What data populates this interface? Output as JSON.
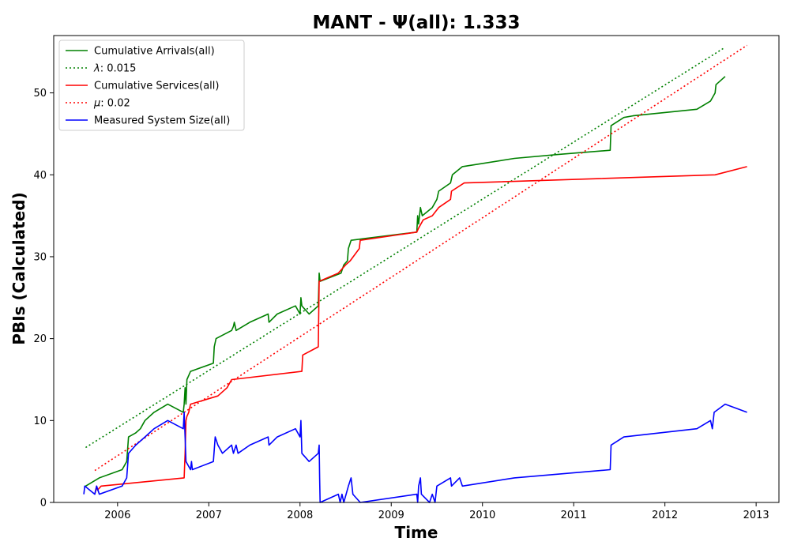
{
  "chart_data": {
    "type": "line",
    "title": "MANT -  Ψ(all): 1.333",
    "xlabel": "Time",
    "ylabel": "PBIs (Calculated)",
    "xlim": [
      2005.3,
      2013.25
    ],
    "ylim": [
      0,
      57
    ],
    "xticks": [
      2006,
      2007,
      2008,
      2009,
      2010,
      2011,
      2012,
      2013
    ],
    "yticks": [
      0,
      10,
      20,
      30,
      40,
      50
    ],
    "grid": false,
    "legend": "top-left",
    "series": [
      {
        "name": "Cumulative Arrivals(all)",
        "color": "#008000",
        "style": "solid",
        "points": [
          [
            2005.65,
            2
          ],
          [
            2005.8,
            3
          ],
          [
            2006.05,
            4
          ],
          [
            2006.1,
            5
          ],
          [
            2006.12,
            8
          ],
          [
            2006.2,
            8.5
          ],
          [
            2006.25,
            9
          ],
          [
            2006.3,
            10
          ],
          [
            2006.4,
            11
          ],
          [
            2006.55,
            12
          ],
          [
            2006.72,
            11
          ],
          [
            2006.73,
            12
          ],
          [
            2006.74,
            14
          ],
          [
            2006.75,
            12
          ],
          [
            2006.76,
            15
          ],
          [
            2006.8,
            16
          ],
          [
            2007.05,
            17
          ],
          [
            2007.06,
            19
          ],
          [
            2007.08,
            20
          ],
          [
            2007.25,
            21
          ],
          [
            2007.27,
            21.5
          ],
          [
            2007.28,
            22
          ],
          [
            2007.3,
            21
          ],
          [
            2007.45,
            22
          ],
          [
            2007.65,
            23
          ],
          [
            2007.66,
            22
          ],
          [
            2007.75,
            23
          ],
          [
            2007.95,
            24
          ],
          [
            2008.0,
            23
          ],
          [
            2008.01,
            25
          ],
          [
            2008.02,
            24
          ],
          [
            2008.1,
            23
          ],
          [
            2008.2,
            24
          ],
          [
            2008.21,
            28
          ],
          [
            2008.22,
            27
          ],
          [
            2008.45,
            28
          ],
          [
            2008.48,
            29
          ],
          [
            2008.52,
            29.5
          ],
          [
            2008.53,
            31
          ],
          [
            2008.56,
            32
          ],
          [
            2008.7,
            32.2
          ],
          [
            2009.28,
            33
          ],
          [
            2009.29,
            35
          ],
          [
            2009.3,
            34
          ],
          [
            2009.32,
            36
          ],
          [
            2009.34,
            35
          ],
          [
            2009.45,
            36
          ],
          [
            2009.5,
            37
          ],
          [
            2009.52,
            38
          ],
          [
            2009.65,
            39
          ],
          [
            2009.67,
            40
          ],
          [
            2009.78,
            41
          ],
          [
            2010.35,
            42
          ],
          [
            2010.85,
            42.5
          ],
          [
            2011.4,
            43
          ],
          [
            2011.41,
            46
          ],
          [
            2011.55,
            47
          ],
          [
            2011.65,
            47.2
          ],
          [
            2012.35,
            48
          ],
          [
            2012.5,
            49
          ],
          [
            2012.55,
            50
          ],
          [
            2012.56,
            51
          ],
          [
            2012.66,
            52
          ]
        ]
      },
      {
        "name": "$\\lambda$: 0.015",
        "legend_symbol": "λ",
        "legend_value": ": 0.015",
        "color": "#008000",
        "style": "dotted",
        "points": [
          [
            2005.65,
            6.7
          ],
          [
            2012.65,
            55.5
          ]
        ]
      },
      {
        "name": "Cumulative Services(all)",
        "color": "#ff0000",
        "style": "solid",
        "points": [
          [
            2005.75,
            1
          ],
          [
            2005.77,
            2
          ],
          [
            2005.78,
            1.5
          ],
          [
            2005.82,
            2
          ],
          [
            2006.73,
            3
          ],
          [
            2006.74,
            6
          ],
          [
            2006.75,
            10
          ],
          [
            2006.76,
            10.5
          ],
          [
            2006.78,
            11
          ],
          [
            2006.8,
            12
          ],
          [
            2007.1,
            13
          ],
          [
            2007.2,
            14
          ],
          [
            2007.25,
            15
          ],
          [
            2008.02,
            16
          ],
          [
            2008.03,
            18
          ],
          [
            2008.2,
            19
          ],
          [
            2008.21,
            27
          ],
          [
            2008.42,
            28
          ],
          [
            2008.5,
            29
          ],
          [
            2008.55,
            29.5
          ],
          [
            2008.65,
            31
          ],
          [
            2008.66,
            32
          ],
          [
            2009.28,
            33
          ],
          [
            2009.3,
            33.5
          ],
          [
            2009.35,
            34.5
          ],
          [
            2009.45,
            35
          ],
          [
            2009.52,
            36
          ],
          [
            2009.65,
            37
          ],
          [
            2009.66,
            38
          ],
          [
            2009.8,
            39
          ],
          [
            2012.55,
            40
          ],
          [
            2012.9,
            41
          ]
        ]
      },
      {
        "name": "$\\mu$: 0.02",
        "legend_symbol": "μ",
        "legend_value": ": 0.02",
        "color": "#ff0000",
        "style": "dotted",
        "points": [
          [
            2005.75,
            3.9
          ],
          [
            2012.9,
            55.8
          ]
        ]
      },
      {
        "name": "Measured System Size(all)",
        "color": "#0000ff",
        "style": "solid",
        "points": [
          [
            2005.63,
            1
          ],
          [
            2005.64,
            2
          ],
          [
            2005.75,
            1
          ],
          [
            2005.77,
            2
          ],
          [
            2005.8,
            1
          ],
          [
            2006.05,
            2
          ],
          [
            2006.1,
            3
          ],
          [
            2006.12,
            6
          ],
          [
            2006.2,
            7
          ],
          [
            2006.3,
            8
          ],
          [
            2006.4,
            9
          ],
          [
            2006.55,
            10
          ],
          [
            2006.72,
            9
          ],
          [
            2006.73,
            11
          ],
          [
            2006.74,
            8
          ],
          [
            2006.75,
            5
          ],
          [
            2006.8,
            4
          ],
          [
            2006.81,
            5
          ],
          [
            2006.82,
            4
          ],
          [
            2007.05,
            5
          ],
          [
            2007.07,
            8
          ],
          [
            2007.1,
            7
          ],
          [
            2007.15,
            6
          ],
          [
            2007.25,
            7
          ],
          [
            2007.27,
            6
          ],
          [
            2007.3,
            7
          ],
          [
            2007.32,
            6
          ],
          [
            2007.45,
            7
          ],
          [
            2007.65,
            8
          ],
          [
            2007.66,
            7
          ],
          [
            2007.75,
            8
          ],
          [
            2007.95,
            9
          ],
          [
            2008.0,
            8
          ],
          [
            2008.01,
            10
          ],
          [
            2008.02,
            6
          ],
          [
            2008.1,
            5
          ],
          [
            2008.2,
            6
          ],
          [
            2008.21,
            7
          ],
          [
            2008.215,
            3
          ],
          [
            2008.22,
            0
          ],
          [
            2008.42,
            1
          ],
          [
            2008.44,
            0
          ],
          [
            2008.46,
            1
          ],
          [
            2008.48,
            0
          ],
          [
            2008.53,
            2
          ],
          [
            2008.56,
            3
          ],
          [
            2008.58,
            1
          ],
          [
            2008.66,
            0
          ],
          [
            2009.28,
            1
          ],
          [
            2009.29,
            0
          ],
          [
            2009.3,
            2
          ],
          [
            2009.32,
            3
          ],
          [
            2009.33,
            1
          ],
          [
            2009.42,
            0
          ],
          [
            2009.45,
            1
          ],
          [
            2009.48,
            0
          ],
          [
            2009.5,
            2
          ],
          [
            2009.65,
            3
          ],
          [
            2009.66,
            2
          ],
          [
            2009.75,
            3
          ],
          [
            2009.78,
            2
          ],
          [
            2010.35,
            3
          ],
          [
            2011.4,
            4
          ],
          [
            2011.41,
            7
          ],
          [
            2011.55,
            8
          ],
          [
            2012.35,
            9
          ],
          [
            2012.5,
            10
          ],
          [
            2012.52,
            9
          ],
          [
            2012.54,
            11
          ],
          [
            2012.66,
            12
          ],
          [
            2012.9,
            11
          ]
        ]
      }
    ]
  }
}
